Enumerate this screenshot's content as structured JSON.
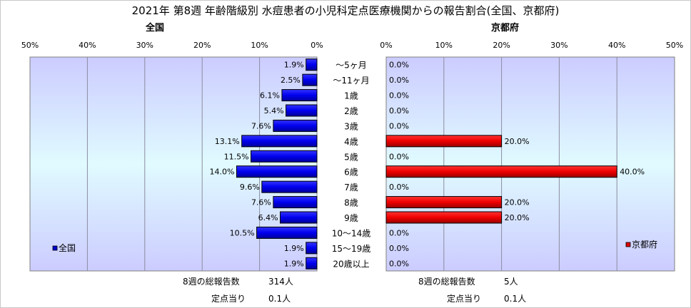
{
  "title": "2021年 第8週 年齢階級別 水痘患者の小児科定点医療機関からの報告割合(全国、京都府)",
  "panels": {
    "left_title": "全国",
    "right_title": "京都府"
  },
  "chart_data": [
    {
      "type": "bar",
      "orientation": "horizontal-reversed",
      "title": "全国",
      "categories": [
        "～5ヶ月",
        "～11ヶ月",
        "1歳",
        "2歳",
        "3歳",
        "4歳",
        "5歳",
        "6歳",
        "7歳",
        "8歳",
        "9歳",
        "10～14歳",
        "15～19歳",
        "20歳以上"
      ],
      "series": [
        {
          "name": "全国",
          "values": [
            1.9,
            2.5,
            6.1,
            5.4,
            7.6,
            13.1,
            11.5,
            14.0,
            9.6,
            7.6,
            6.4,
            10.5,
            1.9,
            1.9
          ],
          "labels": [
            "1.9%",
            "2.5%",
            "6.1%",
            "5.4%",
            "7.6%",
            "13.1%",
            "11.5%",
            "14.0%",
            "9.6%",
            "7.6%",
            "6.4%",
            "10.5%",
            "1.9%",
            "1.9%"
          ],
          "color": "#0000cc"
        }
      ],
      "xlim": [
        0,
        50
      ],
      "ticks": [
        "0%",
        "10%",
        "20%",
        "30%",
        "40%",
        "50%"
      ],
      "legend": "bottom-left"
    },
    {
      "type": "bar",
      "orientation": "horizontal",
      "title": "京都府",
      "categories": [
        "～5ヶ月",
        "～11ヶ月",
        "1歳",
        "2歳",
        "3歳",
        "4歳",
        "5歳",
        "6歳",
        "7歳",
        "8歳",
        "9歳",
        "10～14歳",
        "15～19歳",
        "20歳以上"
      ],
      "series": [
        {
          "name": "京都府",
          "values": [
            0,
            0,
            0,
            0,
            0,
            20,
            0,
            40,
            0,
            20,
            20,
            0,
            0,
            0
          ],
          "labels": [
            "0.0%",
            "0.0%",
            "0.0%",
            "0.0%",
            "0.0%",
            "20.0%",
            "0.0%",
            "40.0%",
            "0.0%",
            "20.0%",
            "20.0%",
            "0.0%",
            "0.0%",
            "0.0%"
          ],
          "color": "#dd0000"
        }
      ],
      "xlim": [
        0,
        50
      ],
      "ticks": [
        "0%",
        "10%",
        "20%",
        "30%",
        "40%",
        "50%"
      ],
      "legend": "bottom-right"
    }
  ],
  "footer": {
    "left_reports_label": "8週の総報告数",
    "left_reports_value": "314人",
    "left_per_label": "定点当り",
    "left_per_value": "0.1人",
    "right_reports_label": "8週の総報告数",
    "right_reports_value": "5人",
    "right_per_label": "定点当り",
    "right_per_value": "0.1人"
  }
}
